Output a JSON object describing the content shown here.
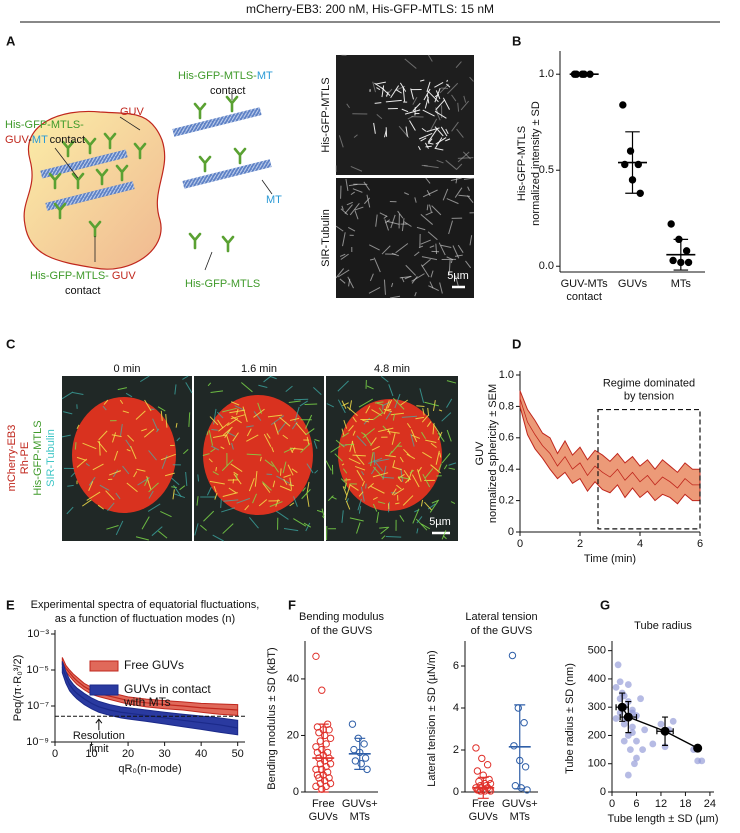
{
  "header": "mCherry-EB3: 200 nM, His-GFP-MTLS: 15 nM",
  "panel_labels": [
    "A",
    "B",
    "C",
    "D",
    "E",
    "F",
    "G"
  ],
  "panel_a": {
    "labels": {
      "guv_mt": [
        "His-GFP-MTLS-",
        "GUV",
        "-",
        "MT",
        "contact"
      ],
      "guv": "GUV",
      "mt_contact": [
        "His-GFP-MTLS-",
        "MT",
        "contact"
      ],
      "mt": "MT",
      "guv_contact": [
        "His-GFP-MTLS-",
        "GUV",
        "contact"
      ],
      "protein": "His-GFP-MTLS"
    },
    "image_labels": [
      "His-GFP-MTLS",
      "SIR-Tubulin"
    ],
    "scale_bar": "5µm"
  },
  "panel_c": {
    "times": [
      "0 min",
      "1.6 min",
      "4.8 min"
    ],
    "channels": [
      "mCherry-EB3",
      "Rh-PE",
      "His-GFP-MTLS",
      "SIR-Tubulin"
    ],
    "scale_bar": "5µm"
  },
  "chart_data": [
    {
      "type": "dot",
      "categories": [
        [
          "GUV-MTs",
          "contact"
        ],
        [
          "GUVs"
        ],
        [
          "MTs"
        ]
      ],
      "y_label": [
        "His-GFP-MTLS",
        "normalized intensity ± SD"
      ],
      "ylim": [
        -0.03,
        1.1
      ],
      "yticks": [
        {
          "value": 0,
          "label": "0.0"
        },
        {
          "value": 0.5,
          "label": "0.5"
        },
        {
          "value": 1,
          "label": "1.0"
        }
      ],
      "points": [
        [
          1,
          1,
          1,
          1,
          1
        ],
        [
          0.84,
          0.6,
          0.53,
          0.53,
          0.45,
          0.38
        ],
        [
          0.22,
          0.14,
          0.08,
          0.03,
          0.02,
          0.02
        ]
      ],
      "means": [
        1,
        0.54,
        0.06
      ],
      "sd": [
        0,
        0.16,
        0.08
      ],
      "colors": [
        "#000000",
        "#000000",
        "#000000"
      ],
      "marker": "filled"
    },
    {
      "type": "band",
      "y_label": [
        "GUV",
        "normalized sphericity ± SEM"
      ],
      "x_label": "Time (min)",
      "x": [
        0,
        0.25,
        0.5,
        0.75,
        1,
        1.25,
        1.5,
        1.75,
        2,
        2.25,
        2.5,
        2.75,
        3,
        3.25,
        3.5,
        3.75,
        4,
        4.25,
        4.5,
        4.75,
        5,
        5.25,
        5.5,
        5.75,
        6
      ],
      "mean": [
        0.85,
        0.7,
        0.62,
        0.55,
        0.5,
        0.42,
        0.48,
        0.4,
        0.44,
        0.36,
        0.42,
        0.38,
        0.35,
        0.4,
        0.33,
        0.38,
        0.32,
        0.36,
        0.3,
        0.35,
        0.32,
        0.28,
        0.34,
        0.3,
        0.3
      ],
      "sem": [
        0.05,
        0.08,
        0.09,
        0.08,
        0.1,
        0.08,
        0.1,
        0.09,
        0.1,
        0.1,
        0.1,
        0.11,
        0.1,
        0.1,
        0.11,
        0.1,
        0.1,
        0.1,
        0.1,
        0.11,
        0.1,
        0.1,
        0.1,
        0.1,
        0.1
      ],
      "color": "#c0271d",
      "fill": "#ec9a78",
      "xlim": [
        0,
        6
      ],
      "xticks": [
        0,
        2,
        4,
        6
      ],
      "ylim": [
        0,
        1
      ],
      "yticks": [
        0,
        0.2,
        0.4,
        0.6,
        0.8,
        {
          "value": 1,
          "label": "1.0"
        }
      ],
      "annotation": {
        "text": [
          "Regime dominated",
          "by tension"
        ],
        "box": [
          2.6,
          6,
          0.02,
          0.78
        ]
      }
    },
    {
      "type": "line",
      "title": [
        "Experimental spectra of equatorial fluctuations,",
        "as a function of fluctuation modes (n)"
      ],
      "y_label": [
        "Peq/(π·R₀³/2)"
      ],
      "x_label": "qR₀(n-mode)",
      "log_y": true,
      "xlim": [
        0,
        52
      ],
      "xticks": [
        0,
        10,
        20,
        30,
        40,
        50
      ],
      "ylim": [
        1e-09,
        0.001
      ],
      "yticks": [
        {
          "value": 0.001,
          "label": "10⁻³"
        },
        {
          "value": 1e-05,
          "label": "10⁻⁵"
        },
        {
          "value": 1e-07,
          "label": "10⁻⁷"
        },
        {
          "value": 1e-09,
          "label": "10⁻⁹"
        }
      ],
      "x": [
        2,
        3,
        4,
        5,
        6,
        8,
        10,
        12,
        15,
        18,
        20,
        25,
        30,
        35,
        40,
        45,
        50
      ],
      "series": [
        {
          "name": [
            "Free GUVs"
          ],
          "color": "#c0271d",
          "fill": "#e0695a",
          "values": [
            3e-05,
            1.2e-05,
            7e-06,
            4e-06,
            2.5e-06,
            1.2e-06,
            7e-07,
            5e-07,
            3.5e-07,
            2.5e-07,
            2e-07,
            1.5e-07,
            1.2e-07,
            1e-07,
            8e-08,
            7e-08,
            6e-08
          ],
          "lower": [
            2e-05,
            8e-06,
            4.5e-06,
            2.6e-06,
            1.6e-06,
            8e-07,
            4.5e-07,
            3.3e-07,
            2.3e-07,
            1.6e-07,
            1.3e-07,
            9e-08,
            7e-08,
            6e-08,
            4.5e-08,
            3.5e-08,
            3e-08
          ],
          "upper": [
            5e-05,
            1.8e-05,
            1e-05,
            6e-06,
            4e-06,
            1.8e-06,
            1.1e-06,
            8e-07,
            5.5e-07,
            4e-07,
            3.2e-07,
            2.4e-07,
            2e-07,
            1.7e-07,
            1.4e-07,
            1.3e-07,
            1.2e-07
          ]
        },
        {
          "name": [
            "GUVs in contact",
            "with MTs"
          ],
          "color": "#1b2a8a",
          "fill": "#2a3aa0",
          "values": [
            1.5e-05,
            4e-06,
            1.5e-06,
            8e-07,
            5e-07,
            2.5e-07,
            1.4e-07,
            9e-08,
            6e-08,
            4.5e-08,
            4e-08,
            3e-08,
            2.2e-08,
            1.6e-08,
            1.2e-08,
            9e-09,
            6e-09
          ],
          "lower": [
            7e-06,
            1.8e-06,
            7e-07,
            4e-07,
            2.5e-07,
            1.2e-07,
            7e-08,
            4.5e-08,
            3e-08,
            2.2e-08,
            1.9e-08,
            1.4e-08,
            1e-08,
            7e-09,
            5e-09,
            3.5e-09,
            2.5e-09
          ],
          "upper": [
            3e-05,
            8e-06,
            3e-06,
            1.6e-06,
            1e-06,
            5e-07,
            2.8e-07,
            1.8e-07,
            1.2e-07,
            9e-08,
            8e-08,
            6e-08,
            4.5e-08,
            3.5e-08,
            2.8e-08,
            2.2e-08,
            1.6e-08
          ]
        }
      ],
      "legend": "upper right",
      "reference": {
        "value": 2.7e-08,
        "label": [
          "Resolution",
          "limit"
        ]
      }
    },
    {
      "type": "dot",
      "title": [
        "Bending modulus",
        "of the GUVS"
      ],
      "categories": [
        [
          "Free",
          "GUVs"
        ],
        [
          "GUVs+",
          "MTs"
        ]
      ],
      "y_label": [
        "Bending modulus ± SD (kBT)"
      ],
      "ylim": [
        0,
        52
      ],
      "yticks": [
        0,
        20,
        40
      ],
      "points": [
        [
          48,
          36,
          24,
          23,
          22,
          22,
          21,
          20,
          19,
          18,
          17,
          16,
          15,
          14,
          14,
          13,
          12,
          12,
          11,
          10,
          10,
          9,
          8,
          8,
          7,
          6,
          6,
          5,
          5,
          4,
          3,
          3,
          2,
          2,
          1
        ],
        [
          24,
          19,
          17,
          15,
          14,
          12,
          11,
          10,
          8
        ]
      ],
      "means": [
        12,
        13.5
      ],
      "sd": [
        12,
        5.5
      ],
      "colors": [
        "#e0302a",
        "#2f5fa8"
      ],
      "marker": "open"
    },
    {
      "type": "dot",
      "title": [
        "Lateral tension",
        "of the GUVS"
      ],
      "categories": [
        [
          "Free",
          "GUVs"
        ],
        [
          "GUVs+",
          "MTs"
        ]
      ],
      "y_label": [
        "Lateral tension ± SD (µN/m)"
      ],
      "ylim": [
        0,
        7
      ],
      "yticks": [
        0,
        2,
        4,
        6
      ],
      "points": [
        [
          2.1,
          1.6,
          1.3,
          1,
          0.8,
          0.6,
          0.5,
          0.4,
          0.4,
          0.3,
          0.3,
          0.2,
          0.2,
          0.2,
          0.1,
          0.1,
          0.1,
          0.1,
          0.05,
          0.05,
          0.05
        ],
        [
          6.5,
          4,
          3.3,
          2.2,
          1.5,
          1.2,
          0.3,
          0.2,
          0.1
        ]
      ],
      "means": [
        0.2,
        2.15
      ],
      "sd": [
        0.5,
        2
      ],
      "colors": [
        "#e0302a",
        "#2f5fa8"
      ],
      "marker": "open"
    },
    {
      "type": "scatter",
      "title": [
        "Tube radius"
      ],
      "y_label": [
        "Tube radius ± SD (nm)"
      ],
      "x_label": "Tube length ± SD (µm)",
      "xlim": [
        0,
        25
      ],
      "xticks": [
        0,
        6,
        12,
        18,
        24
      ],
      "ylim": [
        0,
        520
      ],
      "yticks": [
        0,
        100,
        200,
        300,
        400,
        500
      ],
      "x": [
        1,
        1.5,
        2,
        2,
        2.5,
        3,
        3,
        3.5,
        4,
        4,
        4.5,
        5,
        5,
        5.5,
        6,
        6,
        7,
        7.5,
        8,
        10,
        12,
        13,
        14,
        15,
        20,
        21,
        22,
        1,
        2,
        3,
        4,
        5,
        6,
        3,
        4,
        5
      ],
      "y": [
        370,
        450,
        330,
        280,
        350,
        300,
        240,
        260,
        320,
        200,
        150,
        280,
        230,
        100,
        270,
        180,
        330,
        150,
        220,
        170,
        240,
        160,
        220,
        250,
        150,
        110,
        110,
        260,
        390,
        180,
        380,
        290,
        120,
        340,
        60,
        210
      ],
      "color": "#8f96d6",
      "means_x": [
        2.5,
        4,
        13,
        21
      ],
      "means_y": [
        300,
        265,
        215,
        155
      ],
      "means_xerr": [
        1.5,
        2,
        2,
        0
      ],
      "means_yerr": [
        50,
        55,
        50,
        0
      ],
      "mean_color": "#000000"
    }
  ]
}
